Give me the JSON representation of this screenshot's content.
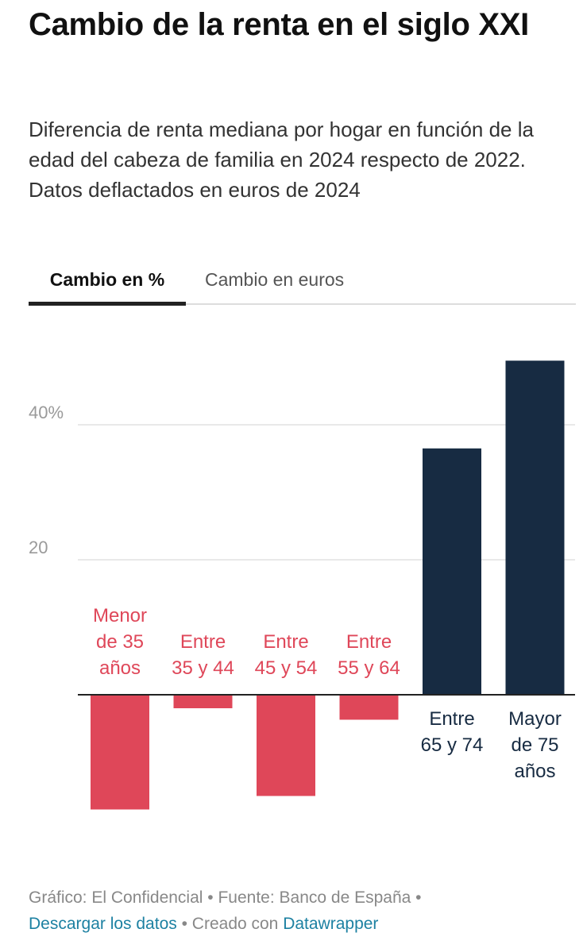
{
  "header": {
    "title": "Cambio de la renta en el siglo XXI",
    "subtitle": "Diferencia de renta mediana por hogar en función de la edad del cabeza de familia en 2024 respecto de 2022. Datos deflactados en euros de 2024"
  },
  "tabs": [
    {
      "label": "Cambio en %",
      "active": true
    },
    {
      "label": "Cambio en euros",
      "active": false
    }
  ],
  "chart_data": {
    "type": "bar",
    "categories": [
      "Menor de 35 años",
      "Entre 35 y 44",
      "Entre 45 y 54",
      "Entre 55 y 64",
      "Entre 65 y 74",
      "Mayor de 75 años"
    ],
    "category_lines": [
      [
        "Menor",
        "de 35",
        "años"
      ],
      [
        "Entre",
        "35 y 44"
      ],
      [
        "Entre",
        "45 y 54"
      ],
      [
        "Entre",
        "55 y 64"
      ],
      [
        "Entre",
        "65 y 74"
      ],
      [
        "Mayor",
        "de 75",
        "años"
      ]
    ],
    "values": [
      -17,
      -2,
      -15,
      -3.7,
      36.5,
      49.5
    ],
    "ylim": [
      -20,
      52
    ],
    "yticks": [
      {
        "value": 20,
        "label": "20"
      },
      {
        "value": 40,
        "label": "40%"
      }
    ],
    "grid": true,
    "colors": {
      "negative": "#df4759",
      "positive": "#172b42",
      "grid": "#e2e2e2",
      "baseline": "#222222",
      "tick_label": "#9a9a9a"
    }
  },
  "footer": {
    "credit_prefix": "Gráfico: ",
    "credit": "El Confidencial",
    "separator": " • ",
    "source_prefix": "Fuente: ",
    "source": "Banco de España",
    "download_label": "Descargar los datos",
    "created_prefix": "Creado con ",
    "tool_label": "Datawrapper"
  }
}
